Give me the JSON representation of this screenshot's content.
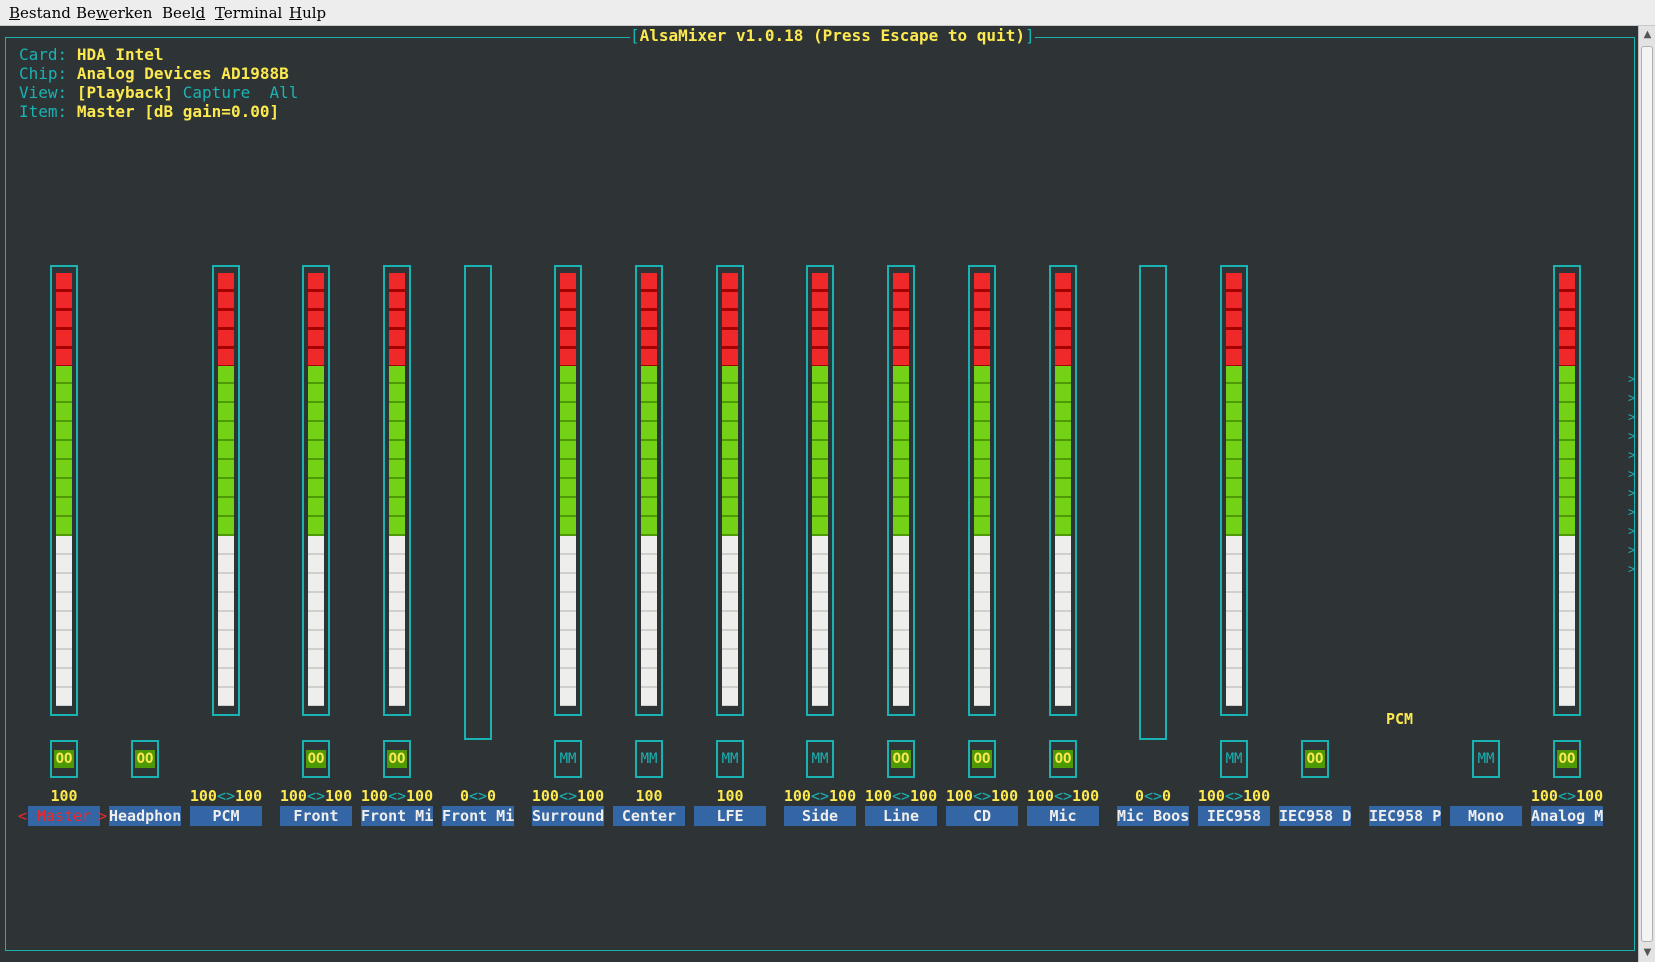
{
  "menubar": {
    "items": [
      {
        "label": "Bestand",
        "underline_index": 0
      },
      {
        "label": "Bewerken",
        "underline_index": 2
      },
      {
        "label": "Beeld",
        "underline_index": 4
      },
      {
        "label": "Terminal",
        "underline_index": 0
      },
      {
        "label": "Hulp",
        "underline_index": 0
      }
    ]
  },
  "mixer": {
    "title": "AlsaMixer v1.0.18 (Press Escape to quit)",
    "card_key": "Card:",
    "card": "HDA Intel",
    "chip_key": "Chip:",
    "chip": "Analog Devices AD1988B",
    "view_key": "View:",
    "view_options": [
      "[Playback]",
      "Capture",
      "All"
    ],
    "item_key": "Item:",
    "item": "Master [dB gain=0.00]",
    "pcm_label": "PCM"
  },
  "channels": [
    {
      "name": "Master",
      "value": "100",
      "bar": true,
      "switch": "OO",
      "selected": true
    },
    {
      "name": "Headphon",
      "value": "",
      "bar": false,
      "switch": "OO"
    },
    {
      "name": "PCM",
      "value": "100<>100",
      "bar": true,
      "switch": ""
    },
    {
      "name": "Front",
      "value": "100<>100",
      "bar": true,
      "switch": "OO"
    },
    {
      "name": "Front Mi",
      "value": "100<>100",
      "bar": true,
      "switch": "OO"
    },
    {
      "name": "Front Mi",
      "value": "0<>0",
      "bar": "empty",
      "switch": ""
    },
    {
      "name": "Surround",
      "value": "100<>100",
      "bar": true,
      "switch": "MM"
    },
    {
      "name": "Center",
      "value": "100",
      "bar": true,
      "switch": "MM"
    },
    {
      "name": "LFE",
      "value": "100",
      "bar": true,
      "switch": "MM"
    },
    {
      "name": "Side",
      "value": "100<>100",
      "bar": true,
      "switch": "MM"
    },
    {
      "name": "Line",
      "value": "100<>100",
      "bar": true,
      "switch": "OO"
    },
    {
      "name": "CD",
      "value": "100<>100",
      "bar": true,
      "switch": "OO"
    },
    {
      "name": "Mic",
      "value": "100<>100",
      "bar": true,
      "switch": "OO"
    },
    {
      "name": "Mic Boos",
      "value": "0<>0",
      "bar": "empty",
      "switch": ""
    },
    {
      "name": "IEC958",
      "value": "100<>100",
      "bar": true,
      "switch": "MM"
    },
    {
      "name": "IEC958 D",
      "value": "",
      "bar": false,
      "switch": "OO"
    },
    {
      "name": "IEC958 P",
      "value": "",
      "bar": false,
      "switch": ""
    },
    {
      "name": "Mono",
      "value": "",
      "bar": false,
      "switch": "MM"
    },
    {
      "name": "Analog M",
      "value": "100<>100",
      "bar": true,
      "switch": "OO"
    }
  ],
  "colors": {
    "terminal_bg": "#2e3436",
    "cyan": "#1ab3b3",
    "yellow": "#fce94f",
    "red": "#ef2929",
    "green": "#73d216",
    "white": "#eeeeec",
    "name_bg": "#3465a4"
  }
}
